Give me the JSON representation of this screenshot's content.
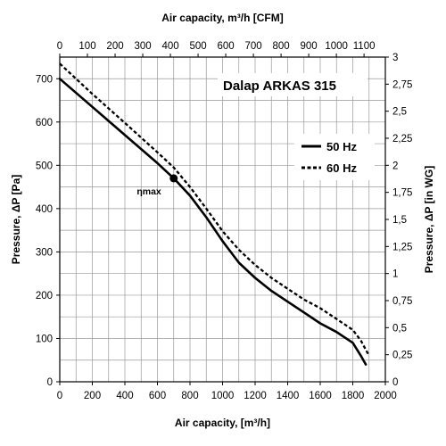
{
  "chart_data": {
    "type": "line",
    "title": "Dalap ARKAS 315",
    "xlabel": "Air capacity, [m³/h]",
    "ylabel": "Pressure, ΔP [Pa]",
    "x_top_label": "Air capacity, m³/h [CFM]",
    "y_right_label": "Pressure, ΔP [in WG]",
    "xlim": [
      0,
      2000
    ],
    "ylim": [
      0,
      750
    ],
    "x_top_lim": [
      0,
      1177
    ],
    "y_right_lim": [
      0,
      3
    ],
    "x_ticks": [
      "0",
      "200",
      "400",
      "600",
      "800",
      "1000",
      "1200",
      "1400",
      "1600",
      "1800",
      "2000"
    ],
    "y_ticks": [
      "0",
      "100",
      "200",
      "300",
      "400",
      "500",
      "600",
      "700"
    ],
    "x_top_ticks": [
      "0",
      "100",
      "200",
      "300",
      "400",
      "500",
      "600",
      "700",
      "800",
      "900",
      "1000",
      "1100"
    ],
    "y_right_ticks": [
      "0",
      "0,25",
      "0,5",
      "0,75",
      "1",
      "1,25",
      "1,5",
      "1,75",
      "2",
      "2,25",
      "2,5",
      "2,75",
      "3"
    ],
    "grid": true,
    "legend_position": "right",
    "series": [
      {
        "name": "50 Hz",
        "style": "solid",
        "x": [
          0,
          200,
          400,
          600,
          700,
          800,
          900,
          1000,
          1100,
          1200,
          1300,
          1400,
          1500,
          1600,
          1700,
          1800,
          1850,
          1880
        ],
        "y": [
          700,
          635,
          570,
          505,
          470,
          430,
          380,
          325,
          275,
          240,
          210,
          185,
          160,
          135,
          115,
          90,
          60,
          40
        ]
      },
      {
        "name": "60 Hz",
        "style": "dashed",
        "x": [
          0,
          200,
          400,
          600,
          700,
          800,
          900,
          1000,
          1100,
          1200,
          1300,
          1400,
          1500,
          1600,
          1700,
          1800,
          1850,
          1900
        ],
        "y": [
          735,
          665,
          598,
          530,
          495,
          450,
          400,
          348,
          305,
          270,
          240,
          215,
          190,
          170,
          145,
          120,
          95,
          60
        ]
      }
    ],
    "annotations": [
      {
        "label": "ηmax",
        "x": 700,
        "y": 470
      }
    ]
  }
}
